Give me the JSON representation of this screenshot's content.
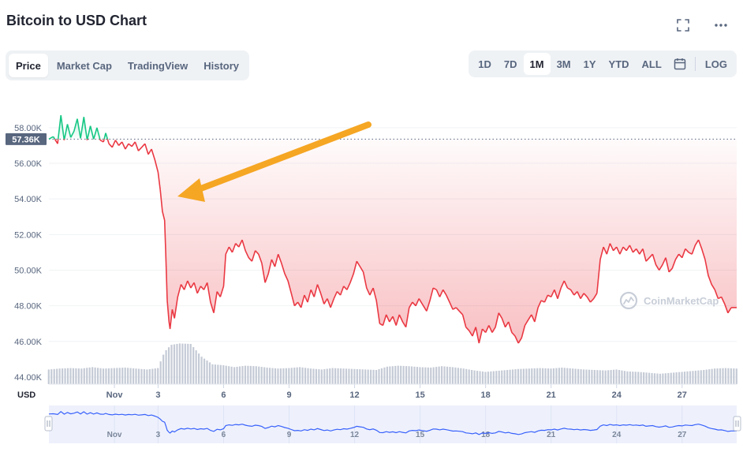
{
  "title": "Bitcoin to USD Chart",
  "view_tabs": [
    "Price",
    "Market Cap",
    "TradingView",
    "History"
  ],
  "active_view": "Price",
  "time_ranges": [
    "1D",
    "7D",
    "1M",
    "3M",
    "1Y",
    "YTD",
    "ALL"
  ],
  "active_range": "1M",
  "log_label": "LOG",
  "watermark": "CoinMarketCap",
  "icons": [
    "fullscreen-icon",
    "more-icon",
    "calendar-icon",
    "coinmarketcap-logo-icon",
    "arrow-annotation"
  ],
  "colors": {
    "up": "#16c784",
    "down": "#ea3943",
    "volume": "#c5cbd6",
    "navigator_line": "#3861fb",
    "arrow": "#f5a623"
  },
  "chart_data": {
    "type": "line",
    "currency_label": "USD",
    "current_price_label": "57.36K",
    "current_price": 57360,
    "ylim": [
      43600,
      59500
    ],
    "yticks": [
      44000,
      46000,
      48000,
      50000,
      52000,
      54000,
      56000,
      58000
    ],
    "ytick_labels": [
      "44.00K",
      "46.00K",
      "48.00K",
      "50.00K",
      "52.00K",
      "54.00K",
      "56.00K",
      "58.00K"
    ],
    "xlim": [
      -2.0,
      29.5
    ],
    "xticks": [
      1,
      3,
      6,
      9,
      12,
      15,
      18,
      21,
      24,
      27
    ],
    "xtick_labels": [
      "Nov",
      "3",
      "6",
      "9",
      "12",
      "15",
      "18",
      "21",
      "24",
      "27"
    ],
    "x_unit": "day of November",
    "series": [
      {
        "points": [
          [
            -2.0,
            57360
          ],
          [
            -1.8,
            57500
          ],
          [
            -1.6,
            57100
          ],
          [
            -1.45,
            58700
          ],
          [
            -1.3,
            57300
          ],
          [
            -1.15,
            58200
          ],
          [
            -1.0,
            57450
          ],
          [
            -0.85,
            57800
          ],
          [
            -0.7,
            58500
          ],
          [
            -0.55,
            57400
          ],
          [
            -0.4,
            58600
          ],
          [
            -0.25,
            57300
          ],
          [
            -0.1,
            58100
          ],
          [
            0.05,
            57350
          ],
          [
            0.2,
            58000
          ],
          [
            0.35,
            57300
          ],
          [
            0.5,
            57200
          ],
          [
            0.6,
            57700
          ],
          [
            0.75,
            57100
          ],
          [
            0.9,
            56900
          ],
          [
            1.05,
            57300
          ],
          [
            1.2,
            57000
          ],
          [
            1.35,
            57200
          ],
          [
            1.5,
            56800
          ],
          [
            1.65,
            57100
          ],
          [
            1.8,
            56950
          ],
          [
            1.95,
            57200
          ],
          [
            2.1,
            56700
          ],
          [
            2.25,
            56900
          ],
          [
            2.4,
            57100
          ],
          [
            2.55,
            56500
          ],
          [
            2.7,
            56800
          ],
          [
            2.85,
            56200
          ],
          [
            3.0,
            55500
          ],
          [
            3.1,
            54500
          ],
          [
            3.2,
            53300
          ],
          [
            3.3,
            52800
          ],
          [
            3.35,
            51000
          ],
          [
            3.42,
            48300
          ],
          [
            3.5,
            47100
          ],
          [
            3.55,
            46700
          ],
          [
            3.65,
            47800
          ],
          [
            3.75,
            47300
          ],
          [
            3.9,
            48500
          ],
          [
            4.05,
            49200
          ],
          [
            4.2,
            48900
          ],
          [
            4.35,
            49400
          ],
          [
            4.5,
            49000
          ],
          [
            4.65,
            49300
          ],
          [
            4.8,
            48700
          ],
          [
            4.95,
            49100
          ],
          [
            5.1,
            48900
          ],
          [
            5.25,
            49300
          ],
          [
            5.4,
            48200
          ],
          [
            5.55,
            47600
          ],
          [
            5.7,
            48800
          ],
          [
            5.85,
            48500
          ],
          [
            6.0,
            49100
          ],
          [
            6.1,
            50900
          ],
          [
            6.25,
            51300
          ],
          [
            6.4,
            51000
          ],
          [
            6.55,
            51500
          ],
          [
            6.7,
            51300
          ],
          [
            6.85,
            51700
          ],
          [
            7.0,
            51100
          ],
          [
            7.15,
            50700
          ],
          [
            7.3,
            50500
          ],
          [
            7.45,
            51100
          ],
          [
            7.6,
            50900
          ],
          [
            7.75,
            50400
          ],
          [
            7.9,
            49300
          ],
          [
            8.05,
            49800
          ],
          [
            8.2,
            50600
          ],
          [
            8.35,
            50200
          ],
          [
            8.5,
            50900
          ],
          [
            8.65,
            50400
          ],
          [
            8.8,
            49800
          ],
          [
            8.95,
            49400
          ],
          [
            9.1,
            48700
          ],
          [
            9.25,
            48000
          ],
          [
            9.4,
            48200
          ],
          [
            9.55,
            47900
          ],
          [
            9.7,
            48600
          ],
          [
            9.85,
            48200
          ],
          [
            10.0,
            48900
          ],
          [
            10.15,
            48500
          ],
          [
            10.3,
            49200
          ],
          [
            10.45,
            48700
          ],
          [
            10.6,
            48100
          ],
          [
            10.75,
            48400
          ],
          [
            10.9,
            47900
          ],
          [
            11.05,
            48400
          ],
          [
            11.2,
            48800
          ],
          [
            11.35,
            48600
          ],
          [
            11.5,
            49100
          ],
          [
            11.65,
            48900
          ],
          [
            11.8,
            49300
          ],
          [
            11.95,
            49800
          ],
          [
            12.1,
            50500
          ],
          [
            12.25,
            50200
          ],
          [
            12.4,
            49900
          ],
          [
            12.55,
            49000
          ],
          [
            12.7,
            48600
          ],
          [
            12.85,
            49000
          ],
          [
            13.0,
            48300
          ],
          [
            13.15,
            47000
          ],
          [
            13.3,
            46900
          ],
          [
            13.45,
            47500
          ],
          [
            13.6,
            47100
          ],
          [
            13.75,
            47400
          ],
          [
            13.9,
            46900
          ],
          [
            14.05,
            47500
          ],
          [
            14.2,
            47100
          ],
          [
            14.35,
            46800
          ],
          [
            14.5,
            47900
          ],
          [
            14.65,
            48200
          ],
          [
            14.8,
            48000
          ],
          [
            14.95,
            48400
          ],
          [
            15.1,
            48100
          ],
          [
            15.3,
            47700
          ],
          [
            15.45,
            48300
          ],
          [
            15.6,
            49000
          ],
          [
            15.75,
            48900
          ],
          [
            15.9,
            48500
          ],
          [
            16.05,
            48900
          ],
          [
            16.2,
            48600
          ],
          [
            16.35,
            48200
          ],
          [
            16.5,
            47800
          ],
          [
            16.65,
            47900
          ],
          [
            16.8,
            47700
          ],
          [
            16.95,
            47500
          ],
          [
            17.1,
            46800
          ],
          [
            17.25,
            46600
          ],
          [
            17.4,
            46300
          ],
          [
            17.55,
            46800
          ],
          [
            17.7,
            45900
          ],
          [
            17.85,
            46700
          ],
          [
            18.0,
            46500
          ],
          [
            18.15,
            46900
          ],
          [
            18.3,
            46500
          ],
          [
            18.45,
            46800
          ],
          [
            18.6,
            47600
          ],
          [
            18.75,
            47300
          ],
          [
            18.9,
            46800
          ],
          [
            19.05,
            47100
          ],
          [
            19.2,
            46500
          ],
          [
            19.35,
            46300
          ],
          [
            19.5,
            45900
          ],
          [
            19.65,
            46200
          ],
          [
            19.8,
            46900
          ],
          [
            19.95,
            47200
          ],
          [
            20.1,
            47500
          ],
          [
            20.25,
            47100
          ],
          [
            20.4,
            47900
          ],
          [
            20.55,
            48300
          ],
          [
            20.7,
            48200
          ],
          [
            20.85,
            48600
          ],
          [
            21.0,
            48500
          ],
          [
            21.15,
            48900
          ],
          [
            21.3,
            48400
          ],
          [
            21.45,
            49000
          ],
          [
            21.6,
            49400
          ],
          [
            21.75,
            49000
          ],
          [
            21.9,
            48900
          ],
          [
            22.05,
            48600
          ],
          [
            22.2,
            48800
          ],
          [
            22.35,
            48400
          ],
          [
            22.5,
            48700
          ],
          [
            22.65,
            48500
          ],
          [
            22.8,
            48200
          ],
          [
            22.95,
            48400
          ],
          [
            23.1,
            48700
          ],
          [
            23.25,
            50600
          ],
          [
            23.4,
            51300
          ],
          [
            23.55,
            50900
          ],
          [
            23.7,
            51500
          ],
          [
            23.85,
            51100
          ],
          [
            24.0,
            51300
          ],
          [
            24.15,
            50900
          ],
          [
            24.3,
            51300
          ],
          [
            24.45,
            51100
          ],
          [
            24.6,
            51400
          ],
          [
            24.75,
            51000
          ],
          [
            24.9,
            51200
          ],
          [
            25.05,
            50900
          ],
          [
            25.2,
            51200
          ],
          [
            25.35,
            50500
          ],
          [
            25.5,
            50700
          ],
          [
            25.65,
            50900
          ],
          [
            25.8,
            50300
          ],
          [
            25.95,
            50000
          ],
          [
            26.1,
            50300
          ],
          [
            26.25,
            50700
          ],
          [
            26.4,
            49900
          ],
          [
            26.55,
            50100
          ],
          [
            26.7,
            50600
          ],
          [
            26.85,
            50900
          ],
          [
            27.0,
            50700
          ],
          [
            27.15,
            51200
          ],
          [
            27.3,
            51000
          ],
          [
            27.45,
            50900
          ],
          [
            27.6,
            51400
          ],
          [
            27.75,
            51700
          ],
          [
            27.9,
            51200
          ],
          [
            28.05,
            50600
          ],
          [
            28.2,
            49700
          ],
          [
            28.35,
            49200
          ],
          [
            28.5,
            48900
          ],
          [
            28.65,
            48400
          ],
          [
            28.8,
            48500
          ],
          [
            28.95,
            48100
          ],
          [
            29.1,
            47600
          ],
          [
            29.25,
            47900
          ],
          [
            29.5,
            47900
          ]
        ]
      }
    ],
    "volume": [
      [
        -2.0,
        0.31
      ],
      [
        -1.5,
        0.33
      ],
      [
        -1.0,
        0.34
      ],
      [
        -0.5,
        0.33
      ],
      [
        0.0,
        0.36
      ],
      [
        0.5,
        0.33
      ],
      [
        1.0,
        0.34
      ],
      [
        1.5,
        0.35
      ],
      [
        2.0,
        0.33
      ],
      [
        2.5,
        0.31
      ],
      [
        3.0,
        0.34
      ],
      [
        3.3,
        0.68
      ],
      [
        3.6,
        0.83
      ],
      [
        4.0,
        0.86
      ],
      [
        4.5,
        0.85
      ],
      [
        5.0,
        0.58
      ],
      [
        5.5,
        0.42
      ],
      [
        6.0,
        0.4
      ],
      [
        6.5,
        0.36
      ],
      [
        7.0,
        0.39
      ],
      [
        7.5,
        0.38
      ],
      [
        8.0,
        0.35
      ],
      [
        8.5,
        0.33
      ],
      [
        9.0,
        0.34
      ],
      [
        9.5,
        0.36
      ],
      [
        10.0,
        0.33
      ],
      [
        10.5,
        0.31
      ],
      [
        11.0,
        0.34
      ],
      [
        11.5,
        0.33
      ],
      [
        12.0,
        0.32
      ],
      [
        12.5,
        0.31
      ],
      [
        13.0,
        0.3
      ],
      [
        13.5,
        0.37
      ],
      [
        14.0,
        0.39
      ],
      [
        14.5,
        0.38
      ],
      [
        15.0,
        0.36
      ],
      [
        15.5,
        0.35
      ],
      [
        16.0,
        0.38
      ],
      [
        16.5,
        0.36
      ],
      [
        17.0,
        0.33
      ],
      [
        17.5,
        0.29
      ],
      [
        18.0,
        0.26
      ],
      [
        18.5,
        0.28
      ],
      [
        19.0,
        0.3
      ],
      [
        19.5,
        0.32
      ],
      [
        20.0,
        0.33
      ],
      [
        20.5,
        0.34
      ],
      [
        21.0,
        0.33
      ],
      [
        21.5,
        0.35
      ],
      [
        22.0,
        0.33
      ],
      [
        22.5,
        0.31
      ],
      [
        23.0,
        0.3
      ],
      [
        23.5,
        0.29
      ],
      [
        24.0,
        0.31
      ],
      [
        24.5,
        0.27
      ],
      [
        25.0,
        0.26
      ],
      [
        25.5,
        0.24
      ],
      [
        26.0,
        0.22
      ],
      [
        26.5,
        0.24
      ],
      [
        27.0,
        0.26
      ],
      [
        27.5,
        0.28
      ],
      [
        28.0,
        0.3
      ],
      [
        28.5,
        0.33
      ],
      [
        29.0,
        0.34
      ],
      [
        29.5,
        0.33
      ]
    ]
  }
}
